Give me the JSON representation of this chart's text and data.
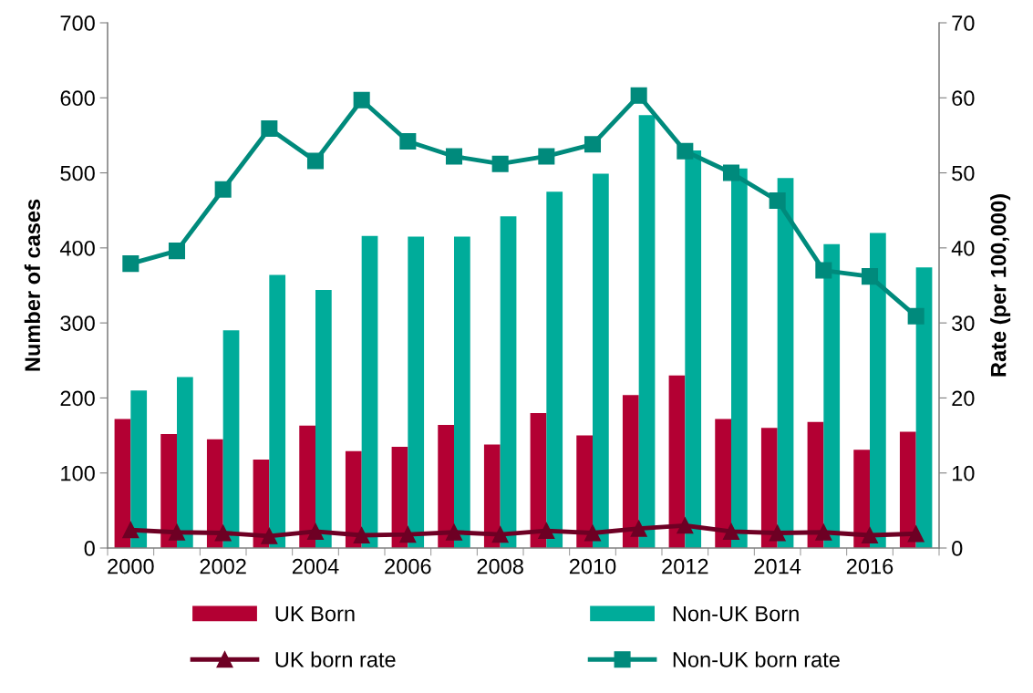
{
  "chart_data": {
    "type": "bar",
    "ylabel": "Number of cases",
    "y2label": "Rate (per 100,000)",
    "categories": [
      "2000",
      null,
      "2002",
      null,
      "2004",
      null,
      "2006",
      null,
      "2008",
      null,
      "2010",
      null,
      "2012",
      null,
      "2014",
      null,
      "2016",
      null
    ],
    "series": [
      {
        "name": "UK Born",
        "color": "#b30033",
        "values": [
          172,
          152,
          145,
          118,
          163,
          129,
          135,
          164,
          138,
          180,
          150,
          204,
          230,
          172,
          160,
          168,
          131,
          155
        ]
      },
      {
        "name": "Non-UK Born",
        "color": "#00ac9a",
        "values": [
          210,
          228,
          290,
          364,
          344,
          416,
          415,
          415,
          442,
          475,
          499,
          577,
          530,
          506,
          493,
          405,
          420,
          374
        ]
      },
      {
        "name": "UK born rate",
        "type": "line",
        "axis": "y2",
        "marker": "triangle",
        "color": "#6e0024",
        "values": [
          2.4,
          2.1,
          2.0,
          1.6,
          2.2,
          1.7,
          1.8,
          2.1,
          1.8,
          2.3,
          2.0,
          2.6,
          3.0,
          2.2,
          2.0,
          2.1,
          1.7,
          1.9
        ]
      },
      {
        "name": "Non-UK born rate",
        "type": "line",
        "axis": "y2",
        "marker": "square",
        "color": "#008a7c",
        "values": [
          37.9,
          39.6,
          47.8,
          55.9,
          51.6,
          59.7,
          54.2,
          52.2,
          51.2,
          52.2,
          53.8,
          60.3,
          52.9,
          50.0,
          46.3,
          37.0,
          36.2,
          30.9
        ]
      }
    ],
    "ylim": [
      0,
      700
    ],
    "yticks": [
      0,
      100,
      200,
      300,
      400,
      500,
      600,
      700
    ],
    "y2lim": [
      0,
      70
    ],
    "y2ticks": [
      0,
      10,
      20,
      30,
      40,
      50,
      60,
      70
    ],
    "grid": false,
    "legend": "bottom"
  }
}
